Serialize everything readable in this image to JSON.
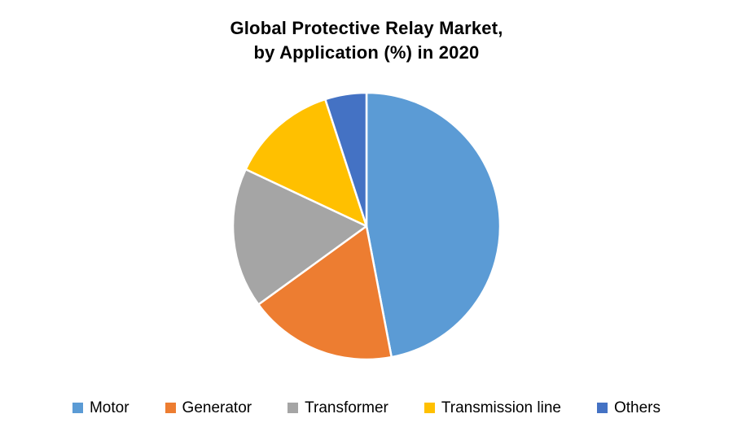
{
  "chart_data": {
    "type": "pie",
    "title": "Global Protective Relay Market,\nby Application (%) in 2020",
    "categories": [
      "Motor",
      "Generator",
      "Transformer",
      "Transmission line",
      "Others"
    ],
    "values": [
      47,
      18,
      17,
      13,
      5
    ],
    "unit": "%",
    "colors": [
      "#5B9BD5",
      "#ED7D31",
      "#A5A5A5",
      "#FFC000",
      "#4472C4"
    ],
    "start_angle_deg": 0,
    "direction": "clockwise",
    "legend_position": "bottom",
    "slice_border_color": "#FFFFFF",
    "background_color": "#FFFFFF"
  }
}
